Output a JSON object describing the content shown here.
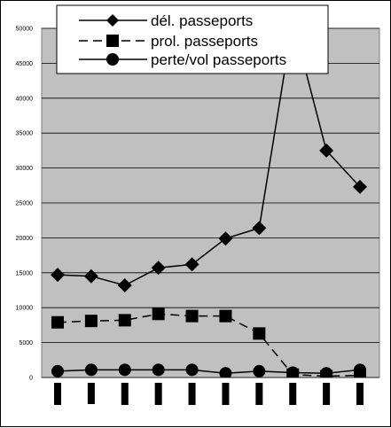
{
  "chart_data": {
    "type": "line",
    "title": "",
    "xlabel": "",
    "ylabel": "",
    "ylim": [
      0,
      50000
    ],
    "yticks": [
      0,
      5000,
      10000,
      15000,
      20000,
      25000,
      30000,
      35000,
      40000,
      45000,
      50000
    ],
    "ytick_labels": [
      "0",
      "5000",
      "10000",
      "15000",
      "20000",
      "25000",
      "30000",
      "35000",
      "40000",
      "45000",
      "50000"
    ],
    "n_points": 10,
    "grid": "horizontal",
    "plot_background": "#c0c0c0",
    "legend_position": "top",
    "series": [
      {
        "name": "dél. passeports",
        "marker": "diamond",
        "line": "solid",
        "values": [
          14700,
          14500,
          13200,
          15700,
          16200,
          19900,
          21400,
          51000,
          32500,
          27300
        ]
      },
      {
        "name": "prol. passeports",
        "marker": "square",
        "line": "dashed",
        "values": [
          7900,
          8100,
          8200,
          9100,
          8800,
          8800,
          6300,
          400,
          200,
          300
        ]
      },
      {
        "name": "perte/vol passeports",
        "marker": "circle",
        "line": "solid",
        "values": [
          900,
          1100,
          1100,
          1100,
          1100,
          600,
          900,
          700,
          600,
          1100
        ]
      }
    ]
  }
}
